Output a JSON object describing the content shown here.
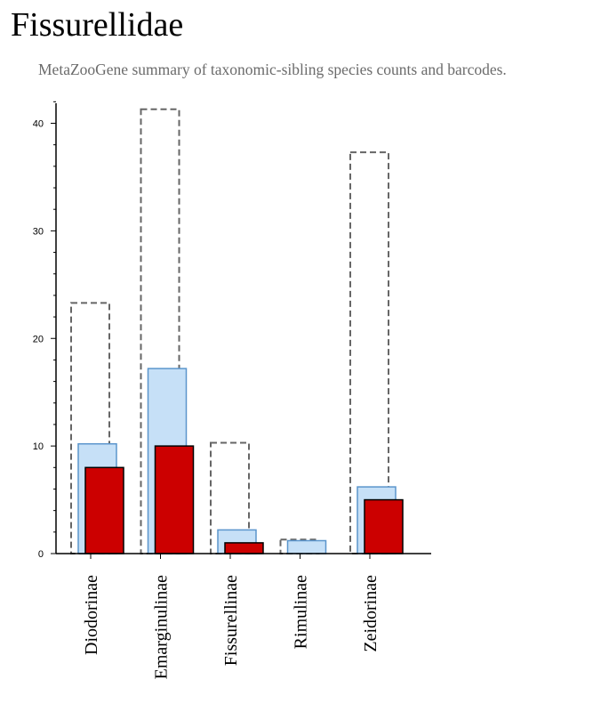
{
  "header": {
    "title": "Fissurellidae",
    "subtitle": "MetaZooGene summary of taxonomic-sibling species counts and barcodes."
  },
  "colors": {
    "outline_dashed": "#666666",
    "light_fill": "#c6e0f7",
    "light_stroke": "#5b95cc",
    "dark_fill": "#cc0000",
    "dark_stroke": "#000000"
  },
  "chart_data": {
    "type": "bar",
    "categories": [
      "Diodorinae",
      "Emarginulinae",
      "Fissurellinae",
      "Rimulinae",
      "Zeidorinae"
    ],
    "series": [
      {
        "style": "dashed-outline",
        "values": [
          23.3,
          41.3,
          10.3,
          1.3,
          37.3
        ]
      },
      {
        "style": "light-blue",
        "values": [
          10.2,
          17.2,
          2.2,
          1.2,
          6.2
        ]
      },
      {
        "style": "dark-red",
        "values": [
          8,
          10,
          1,
          0,
          5
        ]
      }
    ],
    "ylim": [
      0,
      42
    ],
    "yticks": [
      0,
      10,
      20,
      30,
      40
    ],
    "xlabel": "",
    "ylabel": "",
    "grid": false
  }
}
